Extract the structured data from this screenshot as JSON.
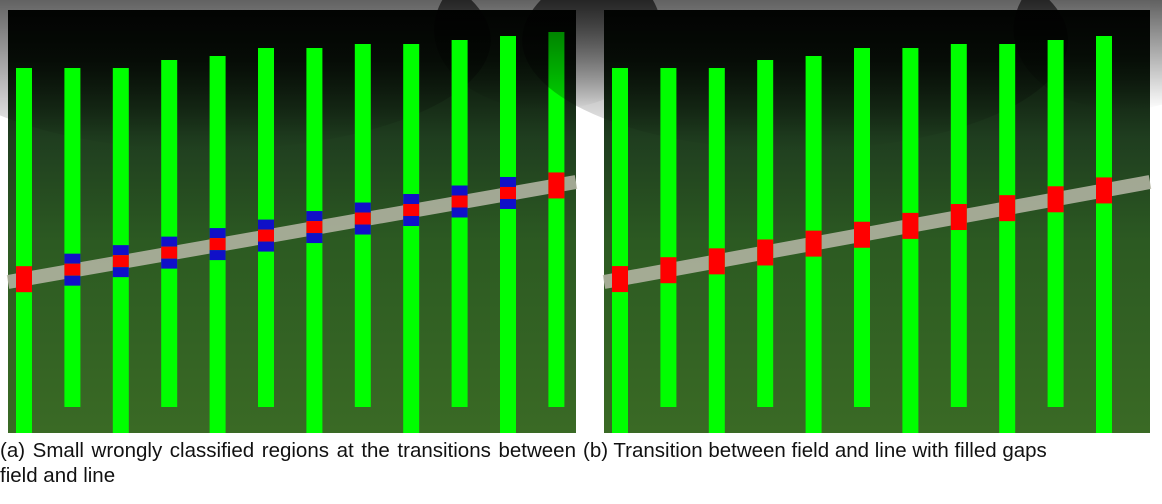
{
  "figures": [
    {
      "caption": "(a) Small wrongly classified regions at the transitions between field and line"
    },
    {
      "caption": "(b) Transition between field and line with filled gaps"
    }
  ]
}
